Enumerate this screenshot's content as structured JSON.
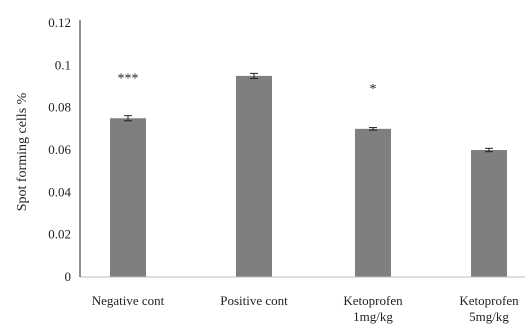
{
  "chart_data": {
    "type": "bar",
    "title": "",
    "xlabel": "",
    "ylabel": "Spot forming cells %",
    "ylim": [
      0,
      0.12
    ],
    "yticks": [
      "0",
      "0.02",
      "0.04",
      "0.06",
      "0.08",
      "0.1",
      "0.12"
    ],
    "categories": [
      [
        "Negative  cont"
      ],
      [
        "Positive cont"
      ],
      [
        "Ketoprofen",
        "1mg/kg"
      ],
      [
        "Ketoprofen",
        "5mg/kg"
      ]
    ],
    "values": [
      0.075,
      0.095,
      0.07,
      0.06
    ],
    "errors": [
      0.0012,
      0.0012,
      0.0006,
      0.0008
    ],
    "annotations": [
      "***",
      "",
      "*",
      ""
    ],
    "bar_color": "#7f7f7f",
    "grid": false,
    "legend": "none"
  }
}
